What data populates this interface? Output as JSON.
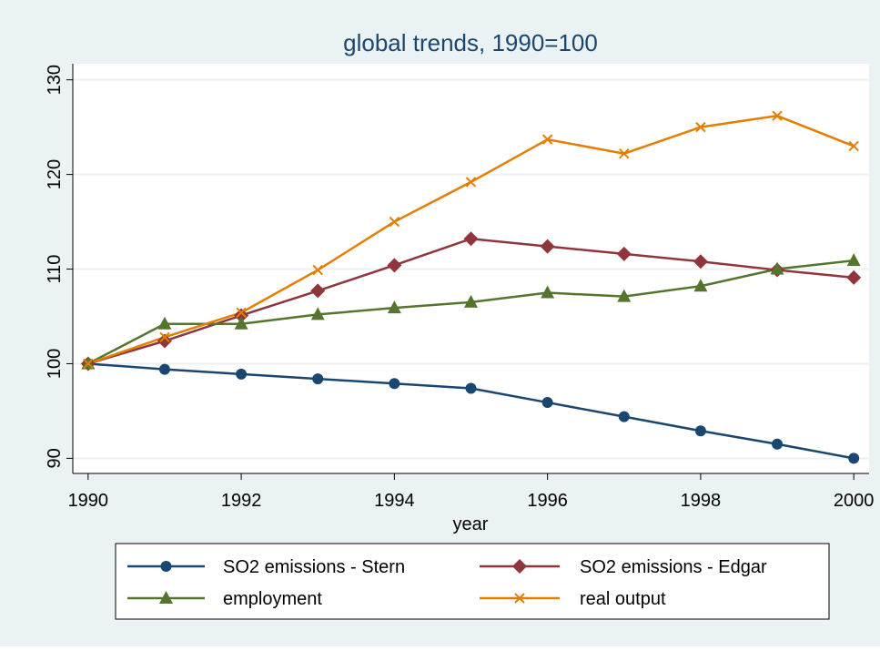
{
  "chart_data": {
    "type": "line",
    "title": "global trends, 1990=100",
    "x_label": "year",
    "x": [
      1990,
      1991,
      1992,
      1993,
      1994,
      1995,
      1996,
      1997,
      1998,
      1999,
      2000
    ],
    "xlim": [
      1989.8,
      2000.2
    ],
    "xticks": [
      1990,
      1992,
      1994,
      1996,
      1998,
      2000
    ],
    "ylim": [
      88.4,
      131.7
    ],
    "yticks": [
      90,
      100,
      110,
      120,
      130
    ],
    "grid": true,
    "series": [
      {
        "name": "SO2 emissions - Stern",
        "color": "#1a476f",
        "marker": "circle",
        "values": [
          100,
          99.4,
          98.9,
          98.4,
          97.9,
          97.4,
          95.9,
          94.4,
          92.9,
          91.5,
          90.0
        ]
      },
      {
        "name": "SO2 emissions - Edgar",
        "color": "#90353b",
        "marker": "diamond",
        "values": [
          100,
          102.4,
          105.1,
          107.7,
          110.4,
          113.2,
          112.4,
          111.6,
          110.8,
          109.9,
          109.1
        ]
      },
      {
        "name": "employment",
        "color": "#55752f",
        "marker": "triangle",
        "values": [
          100,
          104.2,
          104.2,
          105.2,
          105.9,
          106.5,
          107.5,
          107.1,
          108.2,
          110.0,
          110.9
        ]
      },
      {
        "name": "real output",
        "color": "#e37e00",
        "marker": "x",
        "values": [
          100,
          102.8,
          105.4,
          109.9,
          115.0,
          119.2,
          123.7,
          122.2,
          125.0,
          126.2,
          123.0
        ]
      }
    ]
  }
}
